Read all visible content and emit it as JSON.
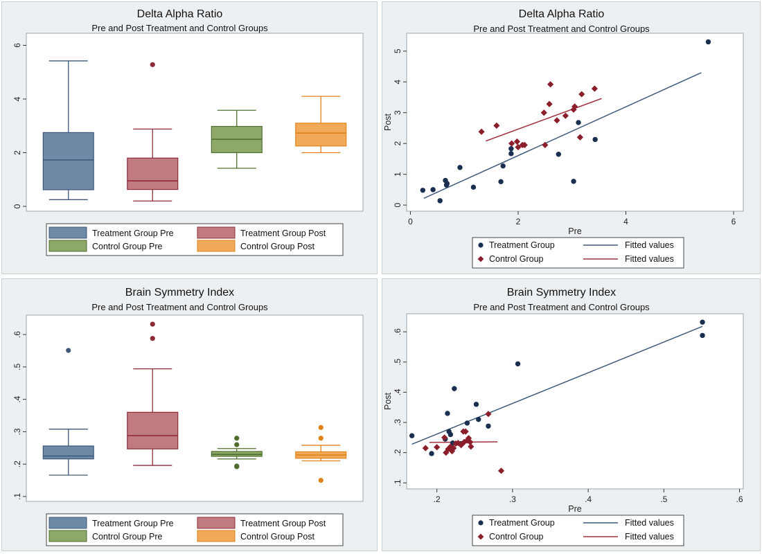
{
  "colors": {
    "panel_bg": "#ecf0f3",
    "plot_bg": "#ffffff",
    "treatment_pre": "#6f8aa6",
    "treatment_pre_line": "#3d5878",
    "treatment_post": "#c07b80",
    "treatment_post_line": "#8c2c39",
    "control_pre": "#8ea86a",
    "control_pre_line": "#4f6d2e",
    "control_post": "#f1aa5a",
    "control_post_line": "#e08218",
    "treatment_marker": "#1a2f4f",
    "control_marker": "#8b1e2b",
    "fit_treatment": "#3f5a79",
    "fit_control": "#a0343f"
  },
  "chart_data": [
    {
      "id": "delta-box",
      "type": "box",
      "title": "Delta Alpha Ratio",
      "subtitle": "Pre and Post Treatment and Control Groups",
      "ylim": [
        -0.18,
        6.45
      ],
      "yticks": [
        0,
        2,
        4,
        6
      ],
      "ytick_labels": [
        "0",
        "2",
        "4",
        "6"
      ],
      "legend": [
        "Treatment Group Pre",
        "Treatment Group Post",
        "Control Group Pre",
        "Control Group Post"
      ],
      "boxes": [
        {
          "group": "Treatment Group Pre",
          "color_key": "treatment_pre",
          "whisker_low": 0.25,
          "q1": 0.62,
          "median": 1.73,
          "q3": 2.75,
          "whisker_high": 5.42,
          "outliers": []
        },
        {
          "group": "Treatment Group Post",
          "color_key": "treatment_post",
          "whisker_low": 0.2,
          "q1": 0.63,
          "median": 0.95,
          "q3": 1.8,
          "whisker_high": 2.88,
          "outliers": [
            5.28
          ]
        },
        {
          "group": "Control Group Pre",
          "color_key": "control_pre",
          "whisker_low": 1.42,
          "q1": 2.0,
          "median": 2.5,
          "q3": 2.98,
          "whisker_high": 3.58,
          "outliers": []
        },
        {
          "group": "Control Group Post",
          "color_key": "control_post",
          "whisker_low": 2.0,
          "q1": 2.25,
          "median": 2.73,
          "q3": 3.1,
          "whisker_high": 4.1,
          "outliers": []
        }
      ]
    },
    {
      "id": "delta-scatter",
      "type": "scatter",
      "title": "Delta Alpha Ratio",
      "subtitle": "Pre and Post Treatment and Control Groups",
      "xlabel": "Pre",
      "ylabel": "Post",
      "xlim": [
        -0.07,
        6.18
      ],
      "ylim": [
        -0.2,
        5.58
      ],
      "xticks": [
        0,
        2,
        4,
        6
      ],
      "xtick_labels": [
        "0",
        "2",
        "4",
        "6"
      ],
      "yticks": [
        0,
        1,
        2,
        3,
        4,
        5
      ],
      "ytick_labels": [
        "0",
        "1",
        "2",
        "3",
        "4",
        "5"
      ],
      "legend": [
        "Treatment Group",
        "Fitted values",
        "Control Group",
        "Fitted values"
      ],
      "series": [
        {
          "name": "Treatment Group",
          "marker": "circle",
          "x": [
            0.23,
            0.42,
            0.55,
            0.65,
            0.67,
            0.68,
            0.92,
            1.17,
            1.68,
            1.72,
            1.87,
            1.87,
            2.75,
            3.03,
            3.12,
            3.43,
            5.53
          ],
          "y": [
            0.48,
            0.5,
            0.14,
            0.8,
            0.65,
            0.7,
            1.22,
            0.58,
            0.76,
            1.27,
            1.67,
            1.83,
            1.65,
            0.77,
            2.68,
            2.13,
            5.3
          ]
        },
        {
          "name": "Control Group",
          "marker": "diamond",
          "x": [
            1.32,
            1.6,
            1.88,
            1.98,
            2.0,
            2.08,
            2.12,
            2.5,
            2.48,
            2.58,
            2.6,
            2.72,
            2.88,
            3.03,
            3.05,
            3.15,
            3.18,
            3.42
          ],
          "y": [
            2.38,
            2.58,
            2.0,
            2.06,
            1.88,
            1.95,
            1.95,
            1.95,
            3.0,
            3.28,
            3.92,
            2.75,
            2.9,
            3.1,
            3.2,
            2.2,
            3.6,
            3.78
          ]
        }
      ],
      "fits": [
        {
          "name": "Treatment Group",
          "x": [
            0.25,
            5.4
          ],
          "y": [
            0.22,
            4.3
          ]
        },
        {
          "name": "Control Group",
          "x": [
            1.4,
            3.55
          ],
          "y": [
            2.08,
            3.46
          ]
        }
      ]
    },
    {
      "id": "bsi-box",
      "type": "box",
      "title": "Brain Symmetry Index",
      "subtitle": "Pre and Post Treatment and Control Groups",
      "ylim": [
        0.085,
        0.66
      ],
      "yticks": [
        0.1,
        0.2,
        0.3,
        0.4,
        0.5,
        0.6
      ],
      "ytick_labels": [
        ".1",
        ".2",
        ".3",
        ".4",
        ".5",
        ".6"
      ],
      "legend": [
        "Treatment Group Pre",
        "Treatment Group Post",
        "Control Group Pre",
        "Control Group Post"
      ],
      "boxes": [
        {
          "group": "Treatment Group Pre",
          "color_key": "treatment_pre",
          "whisker_low": 0.166,
          "q1": 0.216,
          "median": 0.225,
          "q3": 0.256,
          "whisker_high": 0.308,
          "outliers": [
            0.551
          ]
        },
        {
          "group": "Treatment Group Post",
          "color_key": "treatment_post",
          "whisker_low": 0.196,
          "q1": 0.247,
          "median": 0.288,
          "q3": 0.36,
          "whisker_high": 0.494,
          "outliers": [
            0.588,
            0.632
          ]
        },
        {
          "group": "Control Group Pre",
          "color_key": "control_pre",
          "whisker_low": 0.216,
          "q1": 0.224,
          "median": 0.23,
          "q3": 0.239,
          "whisker_high": 0.248,
          "outliers": [
            0.192,
            0.194,
            0.26,
            0.28
          ]
        },
        {
          "group": "Control Group Post",
          "color_key": "control_post",
          "whisker_low": 0.21,
          "q1": 0.218,
          "median": 0.228,
          "q3": 0.238,
          "whisker_high": 0.258,
          "outliers": [
            0.15,
            0.28,
            0.313
          ]
        }
      ]
    },
    {
      "id": "bsi-scatter",
      "type": "scatter",
      "title": "Brain Symmetry Index",
      "subtitle": "Pre and Post Treatment and Control Groups",
      "xlabel": "Pre",
      "ylabel": "Post",
      "xlim": [
        0.16,
        0.605
      ],
      "ylim": [
        0.08,
        0.66
      ],
      "xticks": [
        0.2,
        0.3,
        0.4,
        0.5,
        0.6
      ],
      "xtick_labels": [
        ".2",
        ".3",
        ".4",
        ".5",
        ".6"
      ],
      "yticks": [
        0.1,
        0.2,
        0.3,
        0.4,
        0.5,
        0.6
      ],
      "ytick_labels": [
        ".1",
        ".2",
        ".3",
        ".4",
        ".5",
        ".6"
      ],
      "legend": [
        "Treatment Group",
        "Fitted values",
        "Control Group",
        "Fitted values"
      ],
      "series": [
        {
          "name": "Treatment Group",
          "marker": "circle",
          "x": [
            0.167,
            0.193,
            0.211,
            0.214,
            0.216,
            0.218,
            0.221,
            0.223,
            0.232,
            0.24,
            0.252,
            0.255,
            0.268,
            0.307,
            0.551,
            0.551
          ],
          "y": [
            0.256,
            0.197,
            0.245,
            0.33,
            0.27,
            0.26,
            0.232,
            0.412,
            0.23,
            0.298,
            0.36,
            0.31,
            0.288,
            0.494,
            0.632,
            0.588
          ],
          "_note": ""
        },
        {
          "name": "Control Group",
          "marker": "diamond",
          "x": [
            0.185,
            0.2,
            0.21,
            0.212,
            0.215,
            0.218,
            0.22,
            0.222,
            0.225,
            0.228,
            0.232,
            0.235,
            0.236,
            0.238,
            0.24,
            0.242,
            0.244,
            0.245,
            0.268,
            0.285
          ],
          "y": [
            0.215,
            0.218,
            0.25,
            0.2,
            0.212,
            0.22,
            0.205,
            0.215,
            0.23,
            0.232,
            0.225,
            0.27,
            0.235,
            0.27,
            0.24,
            0.248,
            0.235,
            0.22,
            0.328,
            0.14
          ]
        }
      ],
      "fits": [
        {
          "name": "Treatment Group",
          "x": [
            0.167,
            0.551
          ],
          "y": [
            0.228,
            0.618
          ]
        },
        {
          "name": "Control Group",
          "x": [
            0.19,
            0.28
          ],
          "y": [
            0.234,
            0.236
          ]
        }
      ]
    }
  ]
}
